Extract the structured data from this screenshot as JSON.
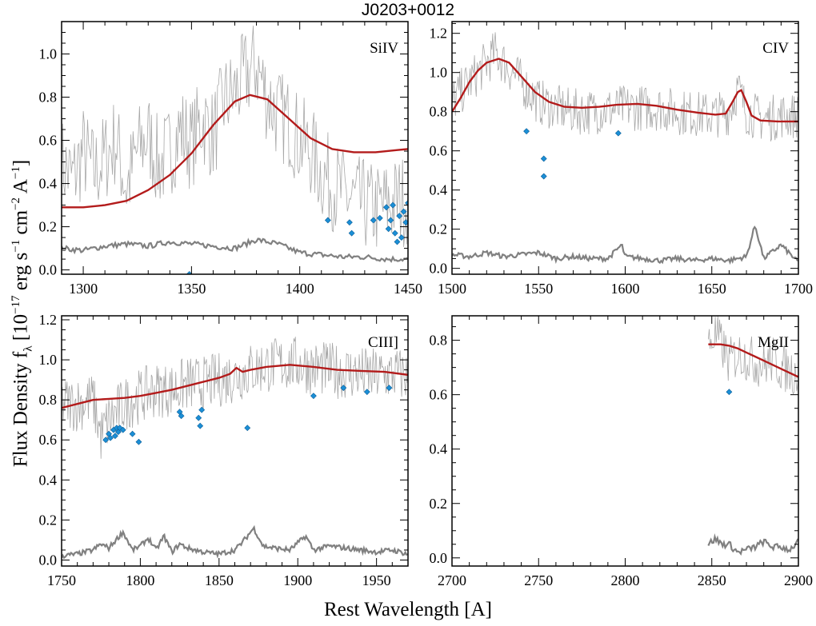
{
  "figure": {
    "title": "J0203+0012",
    "xlabel": "Rest Wavelength [A]",
    "ylabel": {
      "prefix": "Flux Density f",
      "sub": "λ",
      "unit": " [10",
      "exp1": "−17",
      "mid1": " erg s",
      "exp2": "−1",
      "mid2": " cm",
      "exp3": "−2",
      "mid3": " A",
      "exp4": "−1",
      "suffix": "]"
    }
  },
  "colors": {
    "spectrum": "#a8a8a8",
    "error": "#808080",
    "model": "#b31b1b",
    "masked": "#1b8fd6"
  },
  "chart_data": [
    {
      "type": "line",
      "panel": "SiIV",
      "label": "SiIV",
      "xlim": [
        1290,
        1450
      ],
      "ylim": [
        -0.02,
        1.15
      ],
      "xticks": [
        1300,
        1350,
        1400,
        1450
      ],
      "yticks": [
        0.0,
        0.2,
        0.4,
        0.6,
        0.8,
        1.0
      ],
      "ytick_labels": [
        "0.0",
        "0.2",
        "0.4",
        "0.6",
        "0.8",
        "1.0"
      ],
      "spectrum_start": 1290,
      "spectrum_end": 1450,
      "spectrum": [
        [
          1290,
          0.5
        ],
        [
          1295,
          0.42
        ],
        [
          1300,
          0.55
        ],
        [
          1305,
          0.45
        ],
        [
          1310,
          0.52
        ],
        [
          1315,
          0.6
        ],
        [
          1320,
          0.38
        ],
        [
          1325,
          0.55
        ],
        [
          1330,
          0.62
        ],
        [
          1335,
          0.48
        ],
        [
          1340,
          0.55
        ],
        [
          1345,
          0.65
        ],
        [
          1350,
          0.58
        ],
        [
          1355,
          0.7
        ],
        [
          1360,
          0.62
        ],
        [
          1365,
          0.78
        ],
        [
          1370,
          0.82
        ],
        [
          1375,
          0.9
        ],
        [
          1380,
          0.95
        ],
        [
          1385,
          0.8
        ],
        [
          1390,
          0.72
        ],
        [
          1395,
          0.68
        ],
        [
          1400,
          0.6
        ],
        [
          1405,
          0.55
        ],
        [
          1410,
          0.45
        ],
        [
          1415,
          0.4
        ],
        [
          1420,
          0.35
        ],
        [
          1425,
          0.32
        ],
        [
          1430,
          0.3
        ],
        [
          1435,
          0.28
        ],
        [
          1440,
          0.3
        ],
        [
          1445,
          0.32
        ],
        [
          1450,
          0.33
        ]
      ],
      "spectrum_noise": 0.22,
      "model": [
        [
          1290,
          0.29
        ],
        [
          1300,
          0.29
        ],
        [
          1310,
          0.3
        ],
        [
          1320,
          0.32
        ],
        [
          1330,
          0.37
        ],
        [
          1340,
          0.44
        ],
        [
          1350,
          0.54
        ],
        [
          1360,
          0.67
        ],
        [
          1370,
          0.78
        ],
        [
          1377,
          0.81
        ],
        [
          1385,
          0.79
        ],
        [
          1395,
          0.7
        ],
        [
          1405,
          0.61
        ],
        [
          1415,
          0.56
        ],
        [
          1425,
          0.545
        ],
        [
          1435,
          0.545
        ],
        [
          1445,
          0.555
        ],
        [
          1450,
          0.56
        ]
      ],
      "error": [
        [
          1290,
          0.1
        ],
        [
          1300,
          0.09
        ],
        [
          1310,
          0.11
        ],
        [
          1320,
          0.12
        ],
        [
          1330,
          0.11
        ],
        [
          1340,
          0.13
        ],
        [
          1350,
          0.12
        ],
        [
          1360,
          0.11
        ],
        [
          1370,
          0.1
        ],
        [
          1380,
          0.14
        ],
        [
          1390,
          0.12
        ],
        [
          1400,
          0.08
        ],
        [
          1410,
          0.07
        ],
        [
          1420,
          0.06
        ],
        [
          1430,
          0.06
        ],
        [
          1440,
          0.05
        ],
        [
          1450,
          0.05
        ]
      ],
      "masked": [
        [
          1349,
          -0.02
        ],
        [
          1413,
          0.23
        ],
        [
          1423,
          0.22
        ],
        [
          1424,
          0.17
        ],
        [
          1434,
          0.23
        ],
        [
          1437,
          0.24
        ],
        [
          1440,
          0.29
        ],
        [
          1441,
          0.19
        ],
        [
          1442,
          0.23
        ],
        [
          1443,
          0.3
        ],
        [
          1444,
          0.17
        ],
        [
          1445,
          0.13
        ],
        [
          1446,
          0.25
        ],
        [
          1447,
          0.15
        ],
        [
          1448,
          0.27
        ],
        [
          1449,
          0.22
        ],
        [
          1450,
          0.31
        ]
      ]
    },
    {
      "type": "line",
      "panel": "CIV",
      "label": "CIV",
      "xlim": [
        1500,
        1700
      ],
      "ylim": [
        -0.03,
        1.26
      ],
      "xticks": [
        1500,
        1550,
        1600,
        1650,
        1700
      ],
      "yticks": [
        0.0,
        0.2,
        0.4,
        0.6,
        0.8,
        1.0,
        1.2
      ],
      "ytick_labels": [
        "0.0",
        "0.2",
        "0.4",
        "0.6",
        "0.8",
        "1.0",
        "1.2"
      ],
      "spectrum_start": 1500,
      "spectrum_end": 1700,
      "spectrum": [
        [
          1500,
          0.85
        ],
        [
          1510,
          0.95
        ],
        [
          1520,
          1.05
        ],
        [
          1525,
          1.1
        ],
        [
          1530,
          1.05
        ],
        [
          1540,
          0.95
        ],
        [
          1550,
          0.85
        ],
        [
          1560,
          0.82
        ],
        [
          1570,
          0.8
        ],
        [
          1580,
          0.8
        ],
        [
          1590,
          0.81
        ],
        [
          1600,
          0.82
        ],
        [
          1610,
          0.82
        ],
        [
          1620,
          0.82
        ],
        [
          1630,
          0.8
        ],
        [
          1640,
          0.79
        ],
        [
          1650,
          0.78
        ],
        [
          1660,
          0.8
        ],
        [
          1665,
          0.92
        ],
        [
          1670,
          0.8
        ],
        [
          1680,
          0.76
        ],
        [
          1690,
          0.78
        ],
        [
          1700,
          0.78
        ]
      ],
      "spectrum_noise": 0.12,
      "model": [
        [
          1500,
          0.8
        ],
        [
          1505,
          0.87
        ],
        [
          1510,
          0.95
        ],
        [
          1515,
          1.01
        ],
        [
          1520,
          1.05
        ],
        [
          1527,
          1.07
        ],
        [
          1533,
          1.05
        ],
        [
          1540,
          0.98
        ],
        [
          1548,
          0.9
        ],
        [
          1556,
          0.85
        ],
        [
          1565,
          0.825
        ],
        [
          1575,
          0.82
        ],
        [
          1585,
          0.825
        ],
        [
          1595,
          0.835
        ],
        [
          1607,
          0.84
        ],
        [
          1618,
          0.83
        ],
        [
          1630,
          0.81
        ],
        [
          1642,
          0.795
        ],
        [
          1652,
          0.785
        ],
        [
          1658,
          0.79
        ],
        [
          1662,
          0.85
        ],
        [
          1665,
          0.9
        ],
        [
          1667,
          0.91
        ],
        [
          1670,
          0.85
        ],
        [
          1673,
          0.78
        ],
        [
          1678,
          0.755
        ],
        [
          1688,
          0.75
        ],
        [
          1700,
          0.75
        ]
      ],
      "error": [
        [
          1500,
          0.07
        ],
        [
          1510,
          0.06
        ],
        [
          1520,
          0.08
        ],
        [
          1530,
          0.06
        ],
        [
          1540,
          0.07
        ],
        [
          1550,
          0.08
        ],
        [
          1560,
          0.05
        ],
        [
          1570,
          0.06
        ],
        [
          1580,
          0.05
        ],
        [
          1590,
          0.05
        ],
        [
          1598,
          0.12
        ],
        [
          1600,
          0.06
        ],
        [
          1610,
          0.05
        ],
        [
          1620,
          0.04
        ],
        [
          1630,
          0.05
        ],
        [
          1640,
          0.04
        ],
        [
          1650,
          0.05
        ],
        [
          1660,
          0.04
        ],
        [
          1670,
          0.06
        ],
        [
          1675,
          0.22
        ],
        [
          1680,
          0.05
        ],
        [
          1690,
          0.12
        ],
        [
          1700,
          0.03
        ]
      ],
      "masked": [
        [
          1543,
          0.7
        ],
        [
          1553,
          0.56
        ],
        [
          1553,
          0.47
        ],
        [
          1596,
          0.69
        ]
      ]
    },
    {
      "type": "line",
      "panel": "CIII]",
      "label": "CIII]",
      "xlim": [
        1750,
        1970
      ],
      "ylim": [
        -0.03,
        1.22
      ],
      "xticks": [
        1750,
        1800,
        1850,
        1900,
        1950
      ],
      "yticks": [
        0.0,
        0.2,
        0.4,
        0.6,
        0.8,
        1.0,
        1.2
      ],
      "ytick_labels": [
        "0.0",
        "0.2",
        "0.4",
        "0.6",
        "0.8",
        "1.0",
        "1.2"
      ],
      "spectrum_start": 1750,
      "spectrum_end": 1970,
      "spectrum": [
        [
          1750,
          0.78
        ],
        [
          1760,
          0.78
        ],
        [
          1770,
          0.8
        ],
        [
          1775,
          0.62
        ],
        [
          1780,
          0.7
        ],
        [
          1790,
          0.78
        ],
        [
          1800,
          0.82
        ],
        [
          1810,
          0.85
        ],
        [
          1820,
          0.85
        ],
        [
          1830,
          0.88
        ],
        [
          1840,
          0.88
        ],
        [
          1850,
          0.9
        ],
        [
          1860,
          0.92
        ],
        [
          1870,
          0.95
        ],
        [
          1880,
          0.97
        ],
        [
          1890,
          0.98
        ],
        [
          1900,
          0.98
        ],
        [
          1910,
          0.96
        ],
        [
          1920,
          0.95
        ],
        [
          1930,
          0.94
        ],
        [
          1940,
          0.93
        ],
        [
          1950,
          0.92
        ],
        [
          1960,
          0.93
        ],
        [
          1970,
          0.92
        ]
      ],
      "spectrum_noise": 0.14,
      "model": [
        [
          1750,
          0.76
        ],
        [
          1760,
          0.78
        ],
        [
          1770,
          0.8
        ],
        [
          1780,
          0.805
        ],
        [
          1790,
          0.81
        ],
        [
          1800,
          0.82
        ],
        [
          1810,
          0.835
        ],
        [
          1820,
          0.85
        ],
        [
          1830,
          0.87
        ],
        [
          1840,
          0.89
        ],
        [
          1850,
          0.91
        ],
        [
          1857,
          0.93
        ],
        [
          1861,
          0.96
        ],
        [
          1865,
          0.94
        ],
        [
          1870,
          0.95
        ],
        [
          1880,
          0.965
        ],
        [
          1895,
          0.975
        ],
        [
          1910,
          0.965
        ],
        [
          1925,
          0.95
        ],
        [
          1940,
          0.945
        ],
        [
          1955,
          0.94
        ],
        [
          1965,
          0.93
        ],
        [
          1970,
          0.925
        ]
      ],
      "error": [
        [
          1750,
          0.02
        ],
        [
          1760,
          0.03
        ],
        [
          1770,
          0.05
        ],
        [
          1775,
          0.08
        ],
        [
          1780,
          0.06
        ],
        [
          1789,
          0.14
        ],
        [
          1795,
          0.05
        ],
        [
          1800,
          0.07
        ],
        [
          1805,
          0.11
        ],
        [
          1810,
          0.05
        ],
        [
          1815,
          0.12
        ],
        [
          1820,
          0.04
        ],
        [
          1825,
          0.08
        ],
        [
          1830,
          0.06
        ],
        [
          1840,
          0.04
        ],
        [
          1850,
          0.03
        ],
        [
          1860,
          0.05
        ],
        [
          1865,
          0.09
        ],
        [
          1872,
          0.16
        ],
        [
          1878,
          0.07
        ],
        [
          1885,
          0.06
        ],
        [
          1895,
          0.05
        ],
        [
          1905,
          0.12
        ],
        [
          1910,
          0.05
        ],
        [
          1920,
          0.07
        ],
        [
          1930,
          0.06
        ],
        [
          1940,
          0.05
        ],
        [
          1950,
          0.04
        ],
        [
          1960,
          0.05
        ],
        [
          1970,
          0.03
        ]
      ],
      "masked": [
        [
          1778,
          0.6
        ],
        [
          1780,
          0.63
        ],
        [
          1781,
          0.61
        ],
        [
          1783,
          0.65
        ],
        [
          1784,
          0.62
        ],
        [
          1785,
          0.66
        ],
        [
          1786,
          0.64
        ],
        [
          1787,
          0.66
        ],
        [
          1789,
          0.65
        ],
        [
          1795,
          0.63
        ],
        [
          1799,
          0.59
        ],
        [
          1825,
          0.74
        ],
        [
          1826,
          0.72
        ],
        [
          1837,
          0.71
        ],
        [
          1838,
          0.67
        ],
        [
          1839,
          0.75
        ],
        [
          1868,
          0.66
        ],
        [
          1910,
          0.82
        ],
        [
          1929,
          0.86
        ],
        [
          1944,
          0.84
        ],
        [
          1958,
          0.86
        ]
      ]
    },
    {
      "type": "line",
      "panel": "MgII",
      "label": "MgII",
      "xlim": [
        2700,
        2900
      ],
      "ylim": [
        -0.03,
        0.89
      ],
      "xticks": [
        2700,
        2750,
        2800,
        2850,
        2900
      ],
      "yticks": [
        0.0,
        0.2,
        0.4,
        0.6,
        0.8
      ],
      "ytick_labels": [
        "0.0",
        "0.2",
        "0.4",
        "0.6",
        "0.8"
      ],
      "spectrum_start": 2848,
      "spectrum_end": 2900,
      "spectrum": [
        [
          2848,
          0.78
        ],
        [
          2852,
          0.82
        ],
        [
          2856,
          0.78
        ],
        [
          2860,
          0.72
        ],
        [
          2865,
          0.75
        ],
        [
          2870,
          0.74
        ],
        [
          2875,
          0.72
        ],
        [
          2880,
          0.71
        ],
        [
          2885,
          0.73
        ],
        [
          2890,
          0.7
        ],
        [
          2895,
          0.69
        ],
        [
          2900,
          0.68
        ]
      ],
      "spectrum_noise": 0.09,
      "model": [
        [
          2848,
          0.785
        ],
        [
          2855,
          0.785
        ],
        [
          2860,
          0.78
        ],
        [
          2865,
          0.77
        ],
        [
          2870,
          0.755
        ],
        [
          2875,
          0.74
        ],
        [
          2880,
          0.725
        ],
        [
          2885,
          0.71
        ],
        [
          2890,
          0.695
        ],
        [
          2895,
          0.68
        ],
        [
          2900,
          0.665
        ]
      ],
      "error": [
        [
          2848,
          0.05
        ],
        [
          2852,
          0.07
        ],
        [
          2856,
          0.05
        ],
        [
          2860,
          0.05
        ],
        [
          2865,
          0.02
        ],
        [
          2870,
          0.03
        ],
        [
          2875,
          0.04
        ],
        [
          2880,
          0.06
        ],
        [
          2885,
          0.04
        ],
        [
          2890,
          0.04
        ],
        [
          2895,
          0.03
        ],
        [
          2900,
          0.06
        ]
      ],
      "masked": [
        [
          2860,
          0.61
        ]
      ]
    }
  ]
}
